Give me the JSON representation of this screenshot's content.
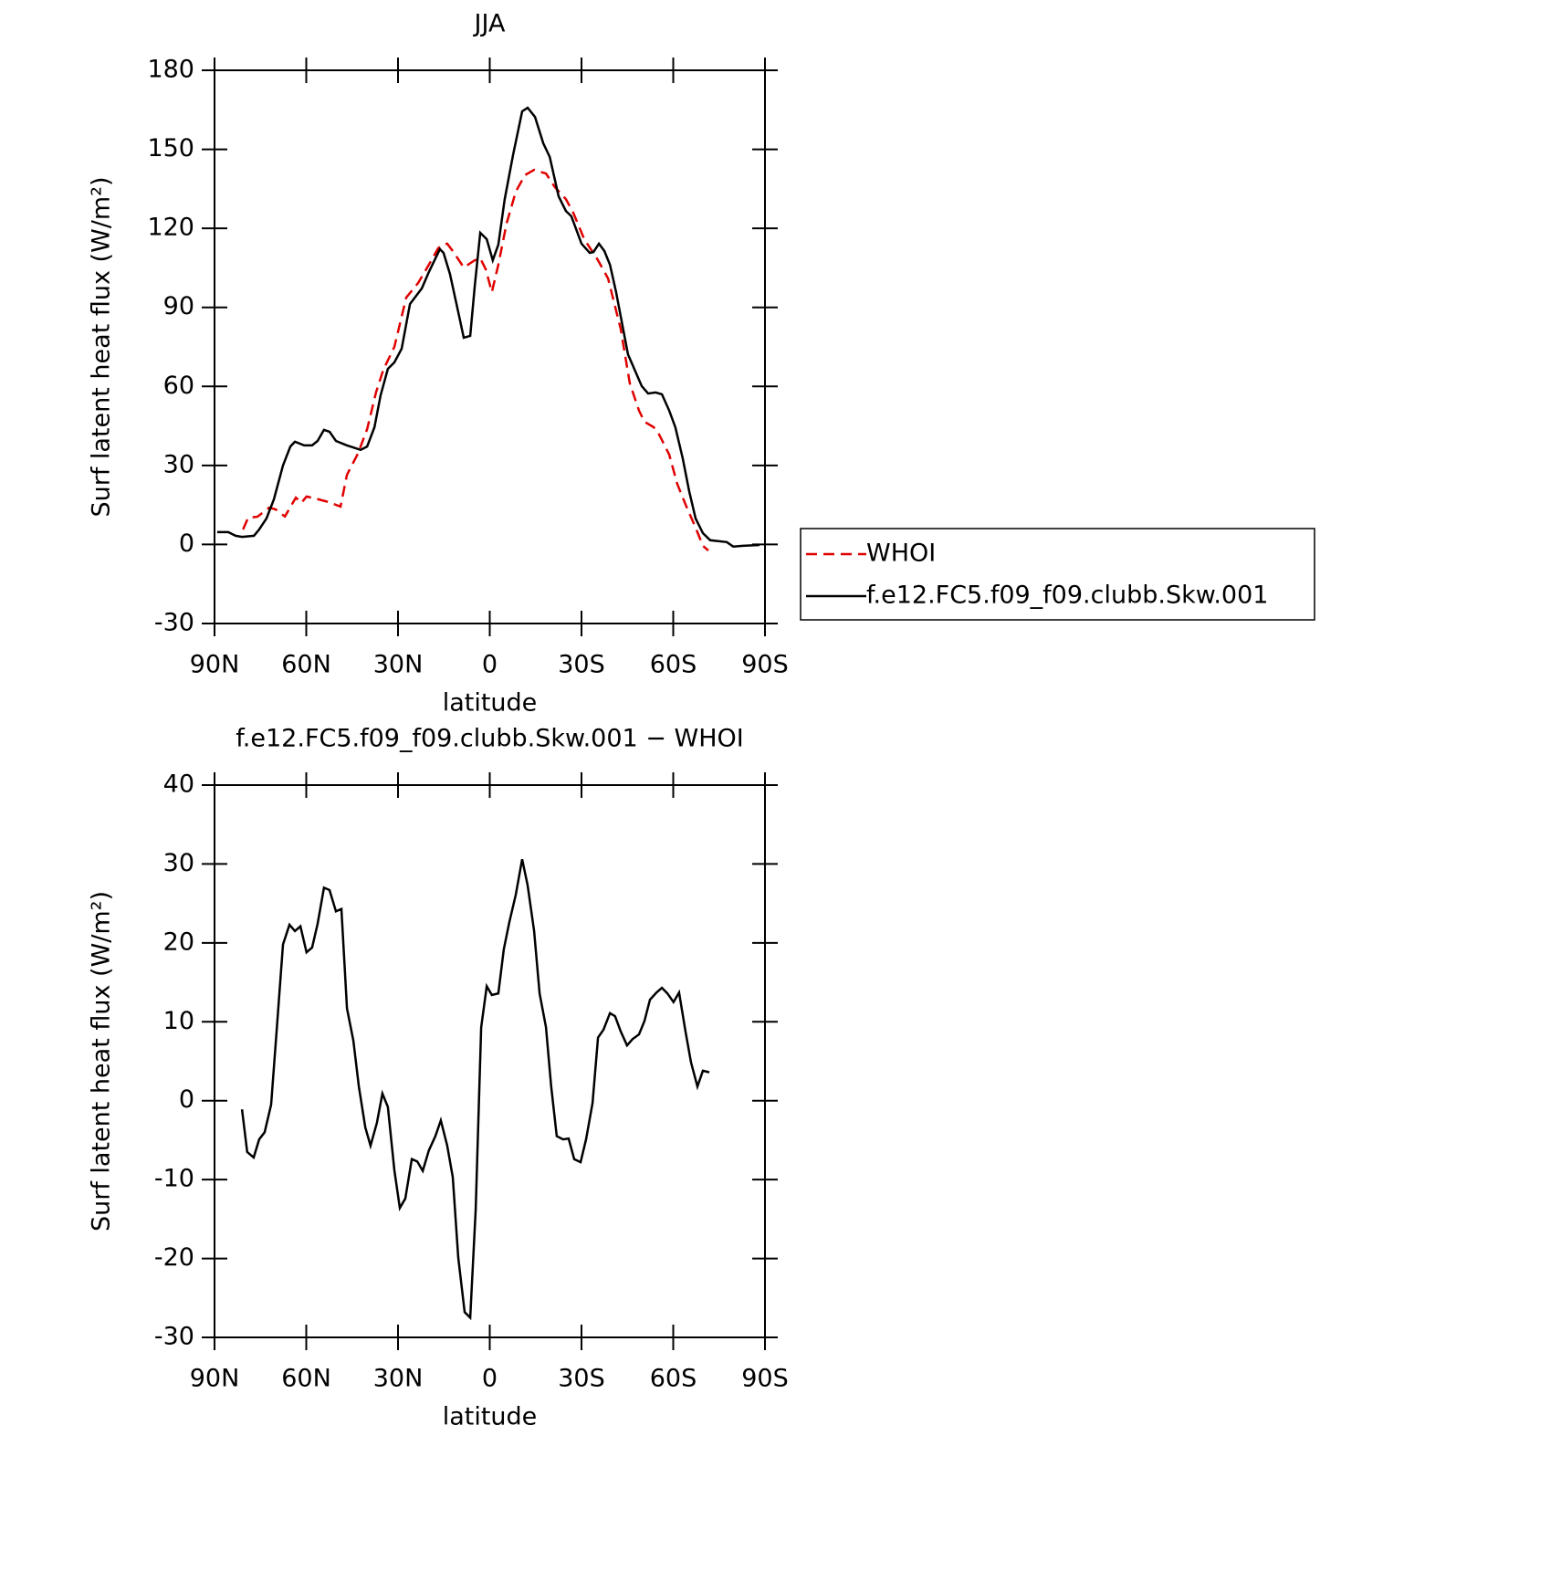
{
  "chart_data": [
    {
      "type": "line",
      "title": "JJA",
      "xlabel": "latitude",
      "ylabel": "Surf latent heat flux (W/m²)",
      "xlim": [
        90,
        -90
      ],
      "ylim": [
        -30,
        180
      ],
      "xticks": [
        {
          "value": 90,
          "label": "90N"
        },
        {
          "value": 60,
          "label": "60N"
        },
        {
          "value": 30,
          "label": "30N"
        },
        0,
        {
          "value": -30,
          "label": "30S"
        },
        {
          "value": -60,
          "label": "60S"
        },
        {
          "value": -90,
          "label": "90S"
        }
      ],
      "yticks": [
        -30,
        0,
        30,
        60,
        90,
        120,
        150,
        180
      ],
      "legend": "right",
      "series": [
        {
          "name": "WHOI",
          "color": "#e00000",
          "line_style": "dashed",
          "x": [
            80.7,
            79.0,
            76.0,
            72.1,
            70.0,
            67.0,
            63.4,
            61.6,
            59.9,
            57.2,
            52.7,
            48.8,
            46.7,
            43.1,
            40.1,
            37.2,
            34.8,
            31.2,
            27.3,
            23.4,
            19.9,
            16.9,
            15.4,
            13.9,
            12.1,
            8.5,
            4.9,
            3.1,
            1.3,
            -0.7,
            -2.8,
            -5.5,
            -8.5,
            -11.5,
            -14.5,
            -18.4,
            -21.3,
            -24.9,
            -27.3,
            -30.9,
            -35.4,
            -38.7,
            -42.8,
            -45.8,
            -48.8,
            -50.6,
            -53.6,
            -55.4,
            -58.7,
            -61.3,
            -64.3,
            -67.3,
            -69.7,
            -71.5
          ],
          "values": [
            5.7,
            10.2,
            10.5,
            14.0,
            13.3,
            10.6,
            17.8,
            15.8,
            18.2,
            17.5,
            16.1,
            14.4,
            26.5,
            34.5,
            43.8,
            57.7,
            66.3,
            75.0,
            93.7,
            99.3,
            106.2,
            112.4,
            113.8,
            114.2,
            111.4,
            105.2,
            107.9,
            108.6,
            104.5,
            95.8,
            106.2,
            121.8,
            133.9,
            140.2,
            142.2,
            140.8,
            135.6,
            131.1,
            125.9,
            115.9,
            107.9,
            101.0,
            81.9,
            61.2,
            50.8,
            46.6,
            44.5,
            41.7,
            34.1,
            23.0,
            14.4,
            6.4,
            -0.5,
            -2.3
          ]
        },
        {
          "name": "f.e12.FC5.f09_f09.clubb.Skw.001",
          "color": "#000000",
          "line_style": "solid",
          "x": [
            89.1,
            85.5,
            83.1,
            81.0,
            77.1,
            75.4,
            73.0,
            70.6,
            67.6,
            65.2,
            63.7,
            60.7,
            58.1,
            56.3,
            54.2,
            52.4,
            50.3,
            46.7,
            42.2,
            40.1,
            37.7,
            35.7,
            33.3,
            31.2,
            28.8,
            26.1,
            22.2,
            19.9,
            16.3,
            15.1,
            13.0,
            10.3,
            8.5,
            6.4,
            4.9,
            3.1,
            1.0,
            -1.0,
            -2.8,
            -4.9,
            -7.6,
            -10.6,
            -12.4,
            -14.8,
            -17.5,
            -19.6,
            -22.5,
            -24.9,
            -26.7,
            -30.0,
            -32.7,
            -33.9,
            -35.7,
            -37.5,
            -39.3,
            -41.3,
            -45.2,
            -49.7,
            -51.8,
            -54.2,
            -56.3,
            -58.7,
            -60.7,
            -63.1,
            -65.2,
            -67.3,
            -69.7,
            -72.1,
            -77.5,
            -79.6,
            -82.8,
            -88.2
          ],
          "values": [
            4.7,
            4.7,
            3.3,
            2.9,
            3.3,
            5.7,
            9.9,
            17.1,
            30.0,
            37.2,
            39.0,
            37.6,
            37.6,
            39.3,
            43.5,
            42.8,
            39.3,
            37.6,
            35.9,
            37.2,
            44.5,
            56.6,
            66.7,
            69.1,
            74.3,
            91.3,
            97.2,
            103.4,
            112.1,
            110.7,
            102.7,
            88.2,
            78.5,
            79.2,
            98.2,
            118.3,
            115.9,
            107.9,
            113.8,
            131.1,
            147.8,
            164.4,
            165.8,
            162.3,
            152.3,
            147.1,
            132.2,
            126.6,
            124.6,
            114.2,
            110.7,
            111.0,
            114.2,
            111.4,
            106.2,
            95.8,
            72.2,
            60.1,
            57.3,
            57.7,
            57.0,
            50.8,
            44.5,
            32.7,
            20.3,
            9.9,
            4.3,
            1.6,
            0.9,
            -0.8,
            -0.5,
            -0.2
          ]
        }
      ]
    },
    {
      "type": "line",
      "title": "f.e12.FC5.f09_f09.clubb.Skw.001 − WHOI",
      "xlabel": "latitude",
      "ylabel": "Surf latent heat flux (W/m²)",
      "xlim": [
        90,
        -90
      ],
      "ylim": [
        -30,
        40
      ],
      "xticks": [
        {
          "value": 90,
          "label": "90N"
        },
        {
          "value": 60,
          "label": "60N"
        },
        {
          "value": 30,
          "label": "30N"
        },
        0,
        {
          "value": -30,
          "label": "30S"
        },
        {
          "value": -60,
          "label": "60S"
        },
        {
          "value": -90,
          "label": "90S"
        }
      ],
      "yticks": [
        -30,
        -20,
        -10,
        0,
        10,
        20,
        30,
        40
      ],
      "series": [
        {
          "color": "#000000",
          "line_style": "solid",
          "x": [
            81.0,
            79.3,
            77.2,
            75.4,
            73.6,
            71.5,
            69.7,
            67.6,
            65.5,
            63.7,
            61.9,
            59.9,
            58.1,
            56.3,
            54.2,
            52.4,
            50.3,
            48.5,
            46.7,
            44.6,
            42.8,
            40.7,
            39.0,
            36.9,
            35.1,
            33.3,
            31.2,
            29.4,
            27.6,
            25.5,
            23.7,
            21.9,
            19.9,
            17.8,
            16.0,
            13.9,
            12.1,
            10.3,
            8.2,
            6.4,
            4.6,
            2.8,
            1.0,
            -0.7,
            -2.8,
            -4.6,
            -6.4,
            -8.5,
            -10.6,
            -12.4,
            -14.5,
            -16.3,
            -18.4,
            -20.1,
            -21.9,
            -24.0,
            -25.8,
            -27.6,
            -29.7,
            -31.5,
            -33.6,
            -35.4,
            -37.2,
            -39.3,
            -41.0,
            -42.8,
            -44.9,
            -46.7,
            -48.8,
            -50.6,
            -52.4,
            -54.5,
            -56.3,
            -58.1,
            -60.1,
            -61.9,
            -64.0,
            -65.8,
            -67.9,
            -69.7,
            -71.8
          ],
          "values": [
            -1.1,
            -6.5,
            -7.2,
            -4.9,
            -4.0,
            -0.5,
            8.8,
            19.8,
            22.3,
            21.5,
            22.1,
            18.8,
            19.4,
            22.4,
            27.0,
            26.7,
            24.0,
            24.3,
            11.7,
            7.6,
            1.8,
            -3.4,
            -5.7,
            -2.8,
            0.9,
            -0.8,
            -8.8,
            -13.6,
            -12.4,
            -7.4,
            -7.7,
            -8.9,
            -6.3,
            -4.5,
            -2.5,
            -5.7,
            -9.7,
            -19.9,
            -26.8,
            -27.5,
            -13.8,
            9.3,
            14.5,
            13.4,
            13.6,
            19.2,
            22.6,
            26.1,
            30.6,
            27.3,
            21.5,
            13.6,
            9.3,
            1.8,
            -4.5,
            -4.9,
            -4.8,
            -7.4,
            -7.8,
            -4.9,
            -0.3,
            8.0,
            9.0,
            11.1,
            10.7,
            8.8,
            7.0,
            7.8,
            8.4,
            10.1,
            12.8,
            13.7,
            14.3,
            13.6,
            12.5,
            13.7,
            8.8,
            4.9,
            1.8,
            3.8,
            3.6
          ]
        }
      ]
    }
  ]
}
